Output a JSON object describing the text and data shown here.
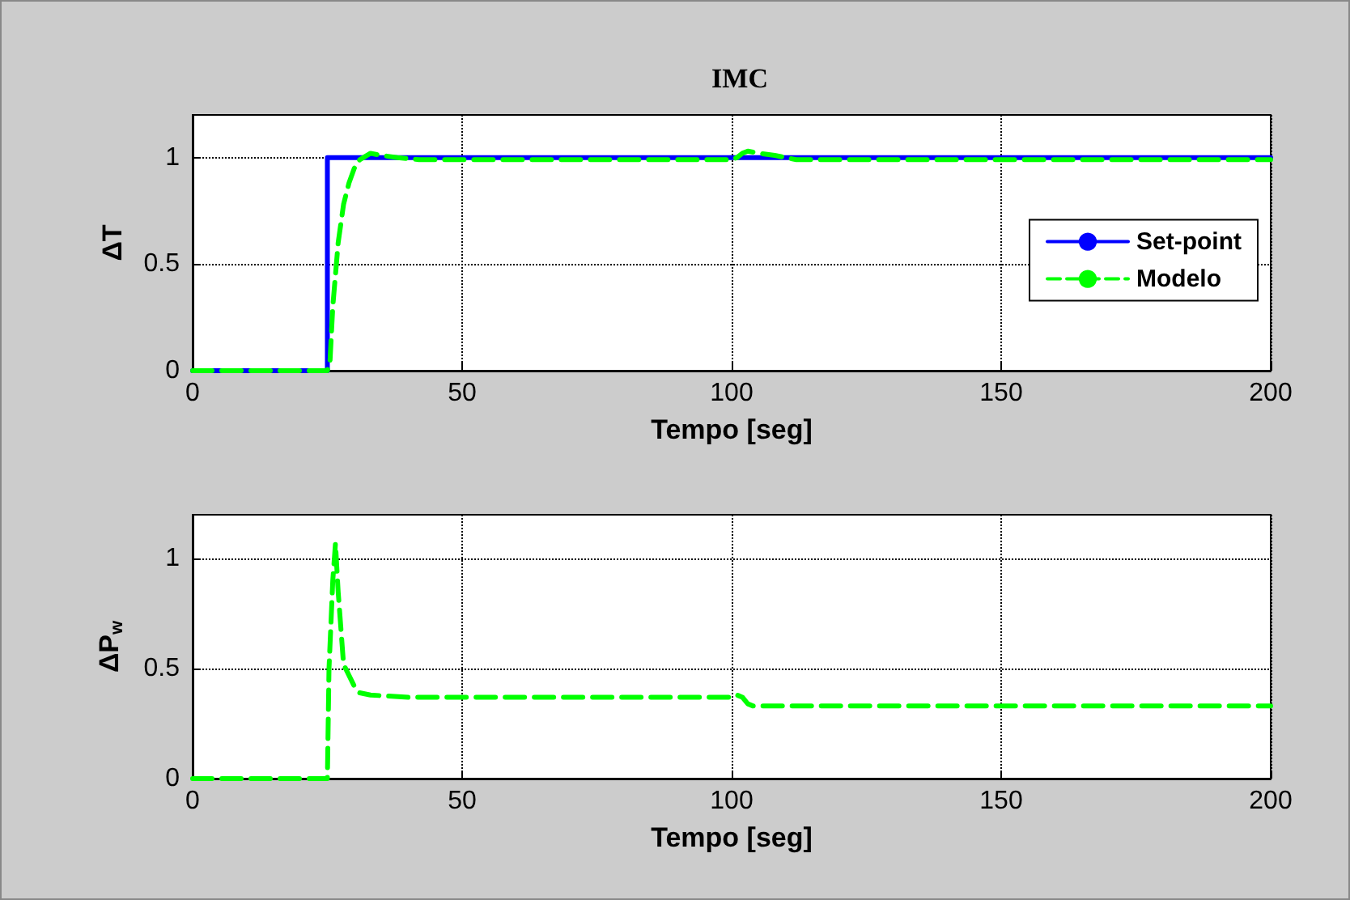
{
  "chart_data": [
    {
      "type": "line",
      "title": "IMC",
      "xlabel": "Tempo [seg]",
      "ylabel": "ΔT",
      "xlim": [
        0,
        200
      ],
      "ylim": [
        0,
        1.2
      ],
      "xticks": [
        0,
        50,
        100,
        150,
        200
      ],
      "yticks": [
        0,
        0.5,
        1
      ],
      "grid": true,
      "legend": "right",
      "marker": "none",
      "series": [
        {
          "name": "Set-point",
          "color": "#0000ff",
          "line_style": "solid",
          "x": [
            0,
            25,
            25,
            200
          ],
          "values": [
            0,
            0,
            1,
            1
          ]
        },
        {
          "name": "Modelo",
          "color": "#00ff00",
          "line_style": "dashed",
          "x": [
            0,
            25,
            25.5,
            26,
            27,
            28,
            29,
            30,
            31,
            33,
            35,
            38,
            42,
            50,
            100,
            101,
            102,
            103,
            105,
            108,
            112,
            120,
            200
          ],
          "values": [
            0,
            0,
            0.05,
            0.3,
            0.6,
            0.78,
            0.88,
            0.95,
            0.99,
            1.02,
            1.01,
            1,
            0.99,
            0.99,
            0.99,
            1,
            1.02,
            1.03,
            1.02,
            1.01,
            0.99,
            0.99,
            0.99
          ]
        }
      ]
    },
    {
      "type": "line",
      "xlabel": "Tempo [seg]",
      "ylabel": "ΔP$_{w}$",
      "xlim": [
        0,
        200
      ],
      "ylim": [
        0,
        1.2
      ],
      "xticks": [
        0,
        50,
        100,
        150,
        200
      ],
      "yticks": [
        0,
        0.5,
        1
      ],
      "grid": true,
      "marker": "none",
      "series": [
        {
          "color": "#00ff00",
          "line_style": "dashed",
          "x": [
            0,
            25,
            25.3,
            26,
            26.5,
            27,
            28,
            29,
            30,
            31,
            33,
            40,
            100,
            101,
            102,
            103,
            104,
            110,
            200
          ],
          "values": [
            0,
            0,
            0.5,
            0.9,
            1.07,
            0.85,
            0.52,
            0.47,
            0.42,
            0.39,
            0.38,
            0.37,
            0.37,
            0.38,
            0.37,
            0.34,
            0.33,
            0.33,
            0.33
          ]
        }
      ]
    }
  ]
}
